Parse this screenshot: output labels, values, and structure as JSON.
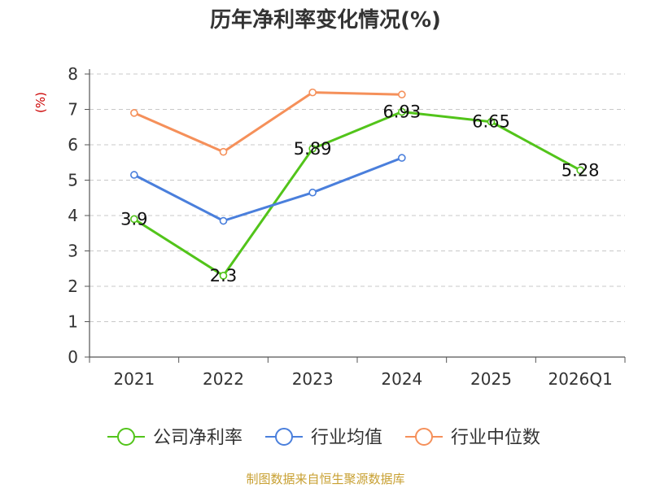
{
  "chart_data": {
    "type": "line",
    "title": "历年净利率变化情况(%)",
    "ylabel": "(%)",
    "xlabel": "",
    "ylim": [
      0,
      8
    ],
    "yticks": [
      0,
      1,
      2,
      3,
      4,
      5,
      6,
      7,
      8
    ],
    "grid": true,
    "legend_position": "bottom",
    "categories": [
      "2021",
      "2022",
      "2023",
      "2024",
      "2025",
      "2026Q1"
    ],
    "series": [
      {
        "name": "公司净利率",
        "color": "#52c41a",
        "values": [
          3.9,
          2.3,
          5.89,
          6.93,
          6.65,
          5.28
        ],
        "show_labels": true
      },
      {
        "name": "行业均值",
        "color": "#4a7fdc",
        "values": [
          5.15,
          3.85,
          4.65,
          5.63,
          null,
          null
        ],
        "show_labels": false
      },
      {
        "name": "行业中位数",
        "color": "#f5905a",
        "values": [
          6.9,
          5.8,
          7.48,
          7.42,
          null,
          null
        ],
        "show_labels": false
      }
    ]
  },
  "footer": "制图数据来自恒生聚源数据库"
}
